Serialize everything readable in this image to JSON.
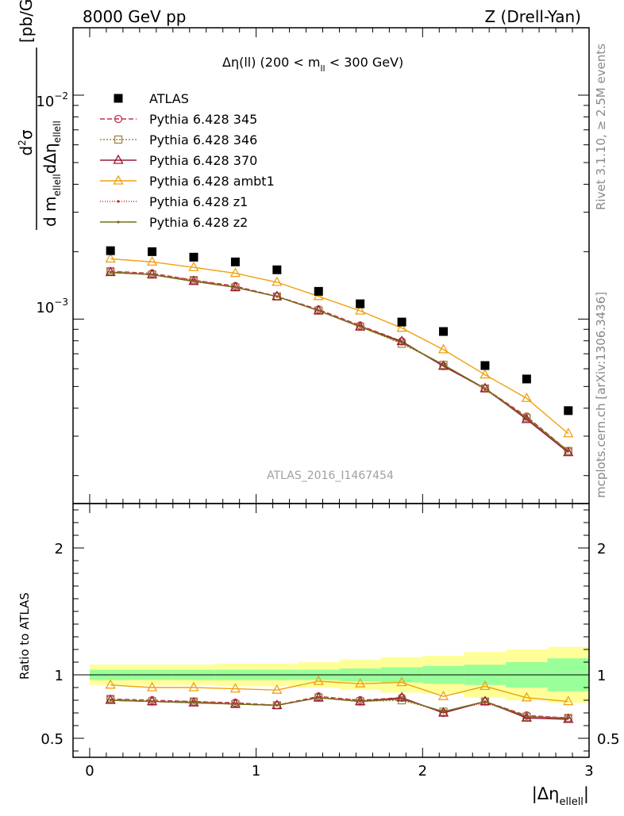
{
  "header": {
    "left": "8000 GeV pp",
    "right": "Z (Drell-Yan)"
  },
  "side_labels": {
    "rivet": "Rivet 3.1.10, ≥ 2.5M events",
    "mcplots": "mcplots.cern.ch [arXiv:1306.3436]"
  },
  "watermark": "ATLAS_2016_I1467454",
  "chart_data": {
    "type": "scatter",
    "title_parts": {
      "a": "Δη(ll) (200 < m",
      "sub": "ll",
      "b": " < 300 GeV)"
    },
    "ylabel_parts": {
      "dsup": "d",
      "sup2": "2",
      "sigma": "σ",
      "den1": "d m",
      "den1_sub": "ellell",
      "den2": "dΔη",
      "den2_sub": "ellell",
      "unit": "[pb/GeV]"
    },
    "xlabel_parts": {
      "a": "|Δη",
      "sub": "ellell",
      "b": "|"
    },
    "ratio_ylabel": "Ratio to ATLAS",
    "x": [
      0.125,
      0.375,
      0.625,
      0.875,
      1.125,
      1.375,
      1.625,
      1.875,
      2.125,
      2.375,
      2.625,
      2.875
    ],
    "xlim": [
      -0.1,
      3.0
    ],
    "ylim": [
      0.00015,
      0.02
    ],
    "yscale": "log",
    "ratio_ylim": [
      0.35,
      2.35
    ],
    "x_ticks": [
      "0",
      "1",
      "2",
      "3"
    ],
    "y_ticks": {
      "major1": "10",
      "major1_exp": "−3",
      "major2": "10",
      "major2_exp": "−2"
    },
    "ratio_ticks": [
      "0.5",
      "1",
      "2"
    ],
    "data": {
      "name": "ATLAS",
      "values": [
        0.00202,
        0.002,
        0.00189,
        0.0018,
        0.00166,
        0.00133,
        0.00117,
        0.00097,
        0.00088,
        0.00062,
        0.00054,
        0.00039
      ]
    },
    "band_inner": [
      0.04,
      0.04,
      0.04,
      0.04,
      0.04,
      0.04,
      0.05,
      0.06,
      0.07,
      0.08,
      0.1,
      0.13
    ],
    "band_outer": [
      0.08,
      0.08,
      0.08,
      0.09,
      0.09,
      0.1,
      0.12,
      0.14,
      0.15,
      0.18,
      0.2,
      0.22
    ],
    "series": [
      {
        "name": "Pythia 6.428 345",
        "color": "#c0334a",
        "dash": "6,3",
        "marker": "circle-open",
        "ratio": [
          0.81,
          0.8,
          0.79,
          0.78,
          0.76,
          0.83,
          0.8,
          0.82,
          0.7,
          0.79,
          0.68,
          0.66
        ]
      },
      {
        "name": "Pythia 6.428 346",
        "color": "#a48444",
        "dash": "2,2",
        "marker": "square-open",
        "ratio": [
          0.81,
          0.79,
          0.79,
          0.77,
          0.76,
          0.82,
          0.79,
          0.8,
          0.71,
          0.79,
          0.67,
          0.66
        ]
      },
      {
        "name": "Pythia 6.428 370",
        "color": "#9b1a36",
        "dash": "",
        "marker": "triangle-open",
        "ratio": [
          0.8,
          0.79,
          0.78,
          0.77,
          0.76,
          0.82,
          0.79,
          0.82,
          0.7,
          0.79,
          0.66,
          0.65
        ]
      },
      {
        "name": "Pythia 6.428 ambt1",
        "color": "#f0a010",
        "dash": "",
        "marker": "triangle-open",
        "ratio": [
          0.92,
          0.9,
          0.9,
          0.89,
          0.88,
          0.95,
          0.93,
          0.94,
          0.83,
          0.91,
          0.82,
          0.79
        ]
      },
      {
        "name": "Pythia 6.428 z1",
        "color": "#d42a1e",
        "dash": "1,2",
        "marker": "dot",
        "ratio": [
          0.8,
          0.79,
          0.79,
          0.77,
          0.76,
          0.82,
          0.8,
          0.81,
          0.71,
          0.78,
          0.67,
          0.66
        ]
      },
      {
        "name": "Pythia 6.428 z2",
        "color": "#707018",
        "dash": "",
        "marker": "dot",
        "ratio": [
          0.8,
          0.79,
          0.78,
          0.77,
          0.76,
          0.82,
          0.79,
          0.81,
          0.71,
          0.79,
          0.67,
          0.66
        ]
      }
    ],
    "legend_position": "top-left",
    "grid": false
  }
}
